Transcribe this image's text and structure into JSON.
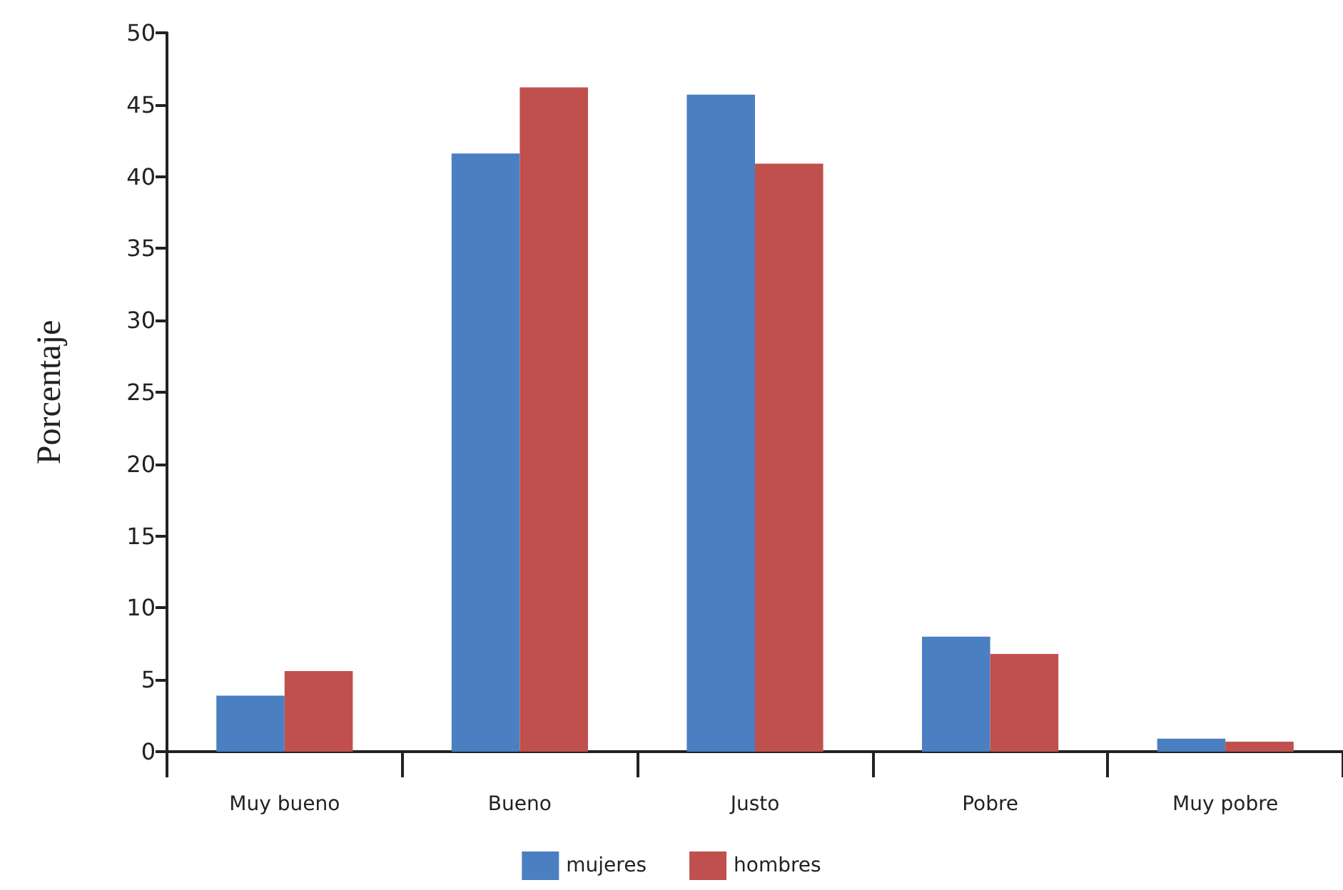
{
  "chart_data": {
    "type": "bar",
    "ylabel": "Porcentaje",
    "categories": [
      "Muy bueno",
      "Bueno",
      "Justo",
      "Pobre",
      "Muy pobre"
    ],
    "series": [
      {
        "name": "mujeres",
        "color": "#4a7fc1",
        "values": [
          3.9,
          41.6,
          45.7,
          8.0,
          0.9
        ]
      },
      {
        "name": "hombres",
        "color": "#c0504d",
        "values": [
          5.6,
          46.2,
          40.9,
          6.8,
          0.7
        ]
      }
    ],
    "ylim": [
      0,
      50
    ],
    "yticks": [
      0,
      5,
      10,
      15,
      20,
      25,
      30,
      35,
      40,
      45,
      50
    ],
    "grid": false,
    "legend": "bottom"
  }
}
